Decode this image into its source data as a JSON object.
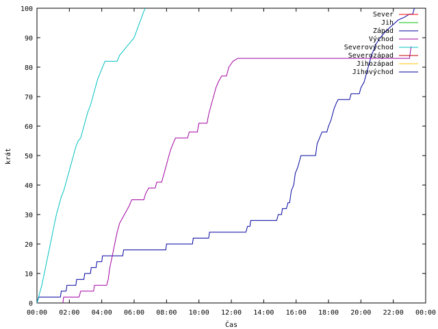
{
  "chart_data": {
    "type": "line",
    "title": "",
    "xlabel": "Čas",
    "ylabel": "krát",
    "xlim": [
      0,
      24
    ],
    "ylim": [
      0,
      100
    ],
    "grid": false,
    "legend_placement": "top-right",
    "x_ticks": [
      {
        "value": 0,
        "label": "00:00"
      },
      {
        "value": 2,
        "label": "02:00"
      },
      {
        "value": 4,
        "label": "04:00"
      },
      {
        "value": 6,
        "label": "06:00"
      },
      {
        "value": 8,
        "label": "08:00"
      },
      {
        "value": 10,
        "label": "10:00"
      },
      {
        "value": 12,
        "label": "12:00"
      },
      {
        "value": 14,
        "label": "14:00"
      },
      {
        "value": 16,
        "label": "16:00"
      },
      {
        "value": 18,
        "label": "18:00"
      },
      {
        "value": 20,
        "label": "20:00"
      },
      {
        "value": 22,
        "label": "22:00"
      },
      {
        "value": 24,
        "label": "00:00"
      }
    ],
    "y_ticks": [
      0,
      10,
      20,
      30,
      40,
      50,
      60,
      70,
      80,
      90,
      100
    ],
    "series": [
      {
        "name": "Sever",
        "color": "#ff0000",
        "points": []
      },
      {
        "name": "Jih",
        "color": "#00c000",
        "points": []
      },
      {
        "name": "Západ",
        "color": "#0000a0",
        "points": [
          [
            0.0,
            0
          ],
          [
            0.12,
            2
          ],
          [
            1.45,
            2
          ],
          [
            1.5,
            4
          ],
          [
            1.8,
            4
          ],
          [
            1.85,
            6
          ],
          [
            2.4,
            6
          ],
          [
            2.45,
            8
          ],
          [
            2.9,
            8
          ],
          [
            2.95,
            10
          ],
          [
            3.3,
            10
          ],
          [
            3.35,
            12
          ],
          [
            3.65,
            12
          ],
          [
            3.7,
            14
          ],
          [
            4.0,
            14
          ],
          [
            4.05,
            16
          ],
          [
            5.3,
            16
          ],
          [
            5.35,
            18
          ],
          [
            7.95,
            18
          ],
          [
            8.0,
            20
          ],
          [
            9.6,
            20
          ],
          [
            9.65,
            22
          ],
          [
            10.6,
            22
          ],
          [
            10.65,
            24
          ],
          [
            12.9,
            24
          ],
          [
            13.0,
            26
          ],
          [
            13.15,
            26
          ],
          [
            13.2,
            28
          ],
          [
            14.8,
            28
          ],
          [
            14.9,
            30
          ],
          [
            15.1,
            30
          ],
          [
            15.15,
            32
          ],
          [
            15.4,
            32
          ],
          [
            15.5,
            34
          ],
          [
            15.6,
            34
          ],
          [
            15.7,
            38
          ],
          [
            15.85,
            40
          ],
          [
            15.95,
            44
          ],
          [
            16.1,
            46
          ],
          [
            16.2,
            48
          ],
          [
            16.3,
            50
          ],
          [
            17.2,
            50
          ],
          [
            17.3,
            54
          ],
          [
            17.45,
            56
          ],
          [
            17.6,
            58
          ],
          [
            17.9,
            58
          ],
          [
            18.0,
            60
          ],
          [
            18.15,
            62
          ],
          [
            18.25,
            64
          ],
          [
            18.35,
            66
          ],
          [
            18.5,
            68
          ],
          [
            18.6,
            69
          ],
          [
            19.3,
            69
          ],
          [
            19.4,
            71
          ],
          [
            19.9,
            71
          ],
          [
            20.0,
            73
          ],
          [
            20.2,
            75
          ],
          [
            20.35,
            78
          ],
          [
            20.5,
            81
          ],
          [
            20.65,
            84
          ],
          [
            20.8,
            86
          ],
          [
            20.95,
            88
          ],
          [
            21.2,
            90
          ],
          [
            21.5,
            92
          ],
          [
            21.9,
            94
          ],
          [
            22.3,
            96
          ],
          [
            22.7,
            97
          ],
          [
            23.0,
            98
          ],
          [
            23.2,
            98
          ],
          [
            23.3,
            100
          ]
        ]
      },
      {
        "name": "Východ",
        "color": "#a000a0",
        "points": [
          [
            1.6,
            0
          ],
          [
            1.65,
            2
          ],
          [
            2.6,
            2
          ],
          [
            2.7,
            4
          ],
          [
            3.5,
            4
          ],
          [
            3.55,
            6
          ],
          [
            4.3,
            6
          ],
          [
            4.4,
            8
          ],
          [
            4.5,
            12
          ],
          [
            4.65,
            16
          ],
          [
            4.8,
            20
          ],
          [
            4.95,
            24
          ],
          [
            5.1,
            27
          ],
          [
            5.3,
            29
          ],
          [
            5.5,
            31
          ],
          [
            5.7,
            33
          ],
          [
            5.85,
            35
          ],
          [
            6.6,
            35
          ],
          [
            6.7,
            37
          ],
          [
            6.9,
            39
          ],
          [
            7.3,
            39
          ],
          [
            7.4,
            41
          ],
          [
            7.7,
            41
          ],
          [
            7.8,
            43
          ],
          [
            7.95,
            46
          ],
          [
            8.1,
            49
          ],
          [
            8.25,
            52
          ],
          [
            8.4,
            54
          ],
          [
            8.55,
            56
          ],
          [
            9.3,
            56
          ],
          [
            9.4,
            58
          ],
          [
            9.9,
            58
          ],
          [
            10.0,
            61
          ],
          [
            10.5,
            61
          ],
          [
            10.6,
            64
          ],
          [
            10.75,
            67
          ],
          [
            10.9,
            70
          ],
          [
            11.05,
            73
          ],
          [
            11.2,
            75
          ],
          [
            11.4,
            77
          ],
          [
            11.7,
            77
          ],
          [
            11.85,
            80
          ],
          [
            12.1,
            82
          ],
          [
            12.4,
            83
          ],
          [
            23.0,
            83
          ],
          [
            23.05,
            85
          ],
          [
            23.1,
            87
          ]
        ]
      },
      {
        "name": "Severovýchod",
        "color": "#00c0c0",
        "points": [
          [
            0.0,
            0
          ],
          [
            0.15,
            3
          ],
          [
            0.3,
            6
          ],
          [
            0.45,
            10
          ],
          [
            0.6,
            14
          ],
          [
            0.75,
            18
          ],
          [
            0.9,
            22
          ],
          [
            1.05,
            26
          ],
          [
            1.2,
            30
          ],
          [
            1.35,
            33
          ],
          [
            1.5,
            36
          ],
          [
            1.65,
            38
          ],
          [
            1.8,
            41
          ],
          [
            1.95,
            44
          ],
          [
            2.1,
            47
          ],
          [
            2.25,
            50
          ],
          [
            2.4,
            53
          ],
          [
            2.55,
            55
          ],
          [
            2.7,
            56
          ],
          [
            2.85,
            59
          ],
          [
            3.0,
            62
          ],
          [
            3.15,
            65
          ],
          [
            3.3,
            67
          ],
          [
            3.45,
            70
          ],
          [
            3.6,
            73
          ],
          [
            3.75,
            76
          ],
          [
            3.9,
            78
          ],
          [
            4.05,
            80
          ],
          [
            4.2,
            82
          ],
          [
            4.95,
            82
          ],
          [
            5.1,
            84
          ],
          [
            5.4,
            86
          ],
          [
            5.7,
            88
          ],
          [
            6.0,
            90
          ],
          [
            6.2,
            93
          ],
          [
            6.4,
            96
          ],
          [
            6.6,
            99
          ],
          [
            6.7,
            100
          ]
        ]
      },
      {
        "name": "Severozápad",
        "color": "#c00000",
        "points": []
      },
      {
        "name": "Jihozápad",
        "color": "#ffc000",
        "points": []
      },
      {
        "name": "Jihovýchod",
        "color": "#0000a0",
        "points": []
      }
    ]
  }
}
